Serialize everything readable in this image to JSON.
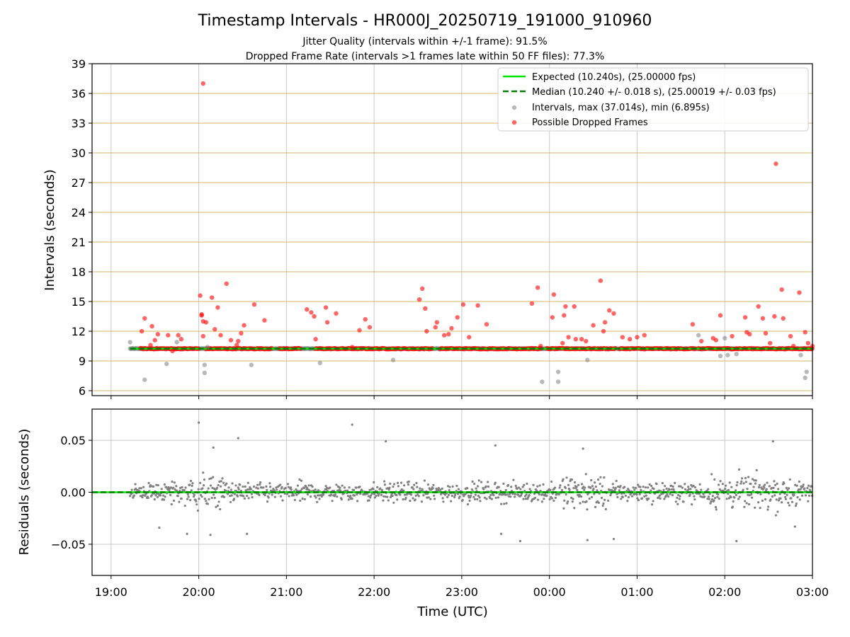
{
  "figure": {
    "title": "Timestamp Intervals - HR000J_20250719_191000_910960",
    "subtitle_1": "Jitter Quality (intervals within +/-1 frame): 91.5%",
    "subtitle_2": "Dropped Frame Rate (intervals >1 frames late within 50 FF files): 77.3%"
  },
  "colors": {
    "expected": "#00e600",
    "median": "#008000",
    "intervals": "#808080",
    "dropped": "#ff0000",
    "top_grid": "#d4b46a",
    "grid": "#c8c8c8"
  },
  "chart_data": [
    {
      "type": "scatter",
      "panel": "top",
      "xlabel": "",
      "ylabel": "Intervals (seconds)",
      "xlim": [
        "18:47",
        "03:00"
      ],
      "ylim": [
        5.5,
        39
      ],
      "yticks": [
        6,
        9,
        12,
        15,
        18,
        21,
        24,
        27,
        30,
        33,
        36,
        39
      ],
      "ytick_labels": [
        "6",
        "9",
        "12",
        "15",
        "18",
        "21",
        "24",
        "27",
        "30",
        "33",
        "36",
        "39"
      ],
      "legend_position": "top-right",
      "legend": [
        {
          "label": "Expected (10.240s), (25.00000 fps)",
          "kind": "solid-line"
        },
        {
          "label": "Median (10.240 +/- 0.018 s), (25.00019 +/- 0.03 fps)",
          "kind": "dashed-line"
        },
        {
          "label": "Intervals, max (37.014s), min (6.895s)",
          "kind": "gray-dot"
        },
        {
          "label": "Possible Dropped Frames",
          "kind": "red-dot"
        }
      ],
      "expected_interval": 10.24,
      "median_interval": 10.24,
      "dropped_frame_dense_bands": [
        [
          "19:20",
          "20:00"
        ],
        [
          "20:05",
          "20:50"
        ],
        [
          "20:55",
          "21:10"
        ],
        [
          "21:20",
          "22:40"
        ],
        [
          "22:45",
          "23:55"
        ],
        [
          "23:58",
          "00:45"
        ],
        [
          "00:48",
          "01:40"
        ],
        [
          "01:42",
          "03:00"
        ]
      ],
      "series": [
        {
          "name": "Possible Dropped Frames",
          "points": [
            [
              "19:21",
              12.0
            ],
            [
              "19:23",
              13.3
            ],
            [
              "19:27",
              10.6
            ],
            [
              "19:28",
              12.5
            ],
            [
              "19:30",
              11.1
            ],
            [
              "19:32",
              11.7
            ],
            [
              "19:39",
              11.6
            ],
            [
              "19:42",
              10.0
            ],
            [
              "19:46",
              11.6
            ],
            [
              "19:48",
              11.2
            ],
            [
              "20:01",
              15.6
            ],
            [
              "20:02",
              13.7
            ],
            [
              "20:02",
              13.6
            ],
            [
              "20:03",
              13.0
            ],
            [
              "20:03",
              11.5
            ],
            [
              "20:05",
              12.9
            ],
            [
              "20:09",
              15.4
            ],
            [
              "20:11",
              12.2
            ],
            [
              "20:13",
              14.4
            ],
            [
              "20:15",
              11.6
            ],
            [
              "20:19",
              16.8
            ],
            [
              "20:22",
              11.1
            ],
            [
              "20:26",
              10.6
            ],
            [
              "20:27",
              11.0
            ],
            [
              "20:29",
              11.8
            ],
            [
              "20:31",
              12.6
            ],
            [
              "20:38",
              14.7
            ],
            [
              "20:45",
              13.1
            ],
            [
              "21:14",
              14.2
            ],
            [
              "21:17",
              13.9
            ],
            [
              "21:19",
              13.5
            ],
            [
              "21:20",
              11.2
            ],
            [
              "21:27",
              14.4
            ],
            [
              "21:28",
              12.9
            ],
            [
              "21:34",
              13.8
            ],
            [
              "21:45",
              10.4
            ],
            [
              "21:50",
              12.1
            ],
            [
              "21:54",
              13.2
            ],
            [
              "21:57",
              12.4
            ],
            [
              "22:31",
              15.2
            ],
            [
              "22:33",
              16.3
            ],
            [
              "22:35",
              14.3
            ],
            [
              "22:36",
              12.0
            ],
            [
              "22:42",
              12.4
            ],
            [
              "22:43",
              12.9
            ],
            [
              "22:48",
              11.6
            ],
            [
              "22:51",
              11.7
            ],
            [
              "22:53",
              12.3
            ],
            [
              "22:57",
              13.4
            ],
            [
              "23:01",
              14.7
            ],
            [
              "23:05",
              11.4
            ],
            [
              "23:11",
              14.6
            ],
            [
              "23:17",
              12.7
            ],
            [
              "23:48",
              14.8
            ],
            [
              "23:52",
              16.4
            ],
            [
              "23:54",
              10.5
            ],
            [
              "00:02",
              13.4
            ],
            [
              "00:03",
              15.7
            ],
            [
              "00:09",
              10.8
            ],
            [
              "00:10",
              13.6
            ],
            [
              "00:11",
              14.5
            ],
            [
              "00:13",
              11.4
            ],
            [
              "00:17",
              14.5
            ],
            [
              "00:18",
              11.2
            ],
            [
              "00:22",
              11.2
            ],
            [
              "00:25",
              11.0
            ],
            [
              "00:30",
              12.6
            ],
            [
              "00:35",
              17.1
            ],
            [
              "00:37",
              12.0
            ],
            [
              "00:38",
              12.9
            ],
            [
              "00:41",
              14.1
            ],
            [
              "00:44",
              13.8
            ],
            [
              "00:50",
              11.4
            ],
            [
              "00:55",
              11.2
            ],
            [
              "01:00",
              11.4
            ],
            [
              "01:05",
              11.6
            ],
            [
              "01:38",
              12.7
            ],
            [
              "01:44",
              11.0
            ],
            [
              "01:52",
              11.3
            ],
            [
              "01:54",
              11.1
            ],
            [
              "01:57",
              13.6
            ],
            [
              "02:05",
              11.5
            ],
            [
              "02:14",
              13.4
            ],
            [
              "02:15",
              11.9
            ],
            [
              "02:17",
              11.7
            ],
            [
              "02:23",
              14.5
            ],
            [
              "02:26",
              13.3
            ],
            [
              "02:28",
              11.8
            ],
            [
              "02:31",
              10.8
            ],
            [
              "02:34",
              13.5
            ],
            [
              "02:35",
              28.9
            ],
            [
              "02:39",
              16.2
            ],
            [
              "02:40",
              13.3
            ],
            [
              "02:45",
              11.5
            ],
            [
              "02:47",
              10.5
            ],
            [
              "02:51",
              15.9
            ],
            [
              "02:55",
              11.9
            ],
            [
              "02:57",
              10.8
            ],
            [
              "03:00",
              10.5
            ]
          ]
        },
        {
          "name": "Intervals, max (37.014s), min (6.895s)",
          "points": [
            [
              "19:13",
              10.9
            ],
            [
              "19:23",
              7.1
            ],
            [
              "19:38",
              8.7
            ],
            [
              "19:45",
              10.9
            ],
            [
              "20:04",
              8.6
            ],
            [
              "20:04",
              7.8
            ],
            [
              "20:06",
              10.4
            ],
            [
              "20:36",
              8.6
            ],
            [
              "21:23",
              8.8
            ],
            [
              "22:13",
              9.1
            ],
            [
              "23:55",
              6.9
            ],
            [
              "00:06",
              7.9
            ],
            [
              "00:06",
              6.9
            ],
            [
              "00:26",
              9.1
            ],
            [
              "01:42",
              11.6
            ],
            [
              "01:57",
              9.5
            ],
            [
              "02:00",
              11.3
            ],
            [
              "02:02",
              9.6
            ],
            [
              "02:08",
              9.7
            ],
            [
              "02:52",
              9.6
            ],
            [
              "02:55",
              7.3
            ],
            [
              "02:56",
              7.9
            ]
          ]
        },
        {
          "name": "Possible Dropped Frames",
          "points": [
            [
              "20:03",
              37.0
            ]
          ]
        }
      ]
    },
    {
      "type": "scatter",
      "panel": "bottom",
      "xlabel": "Time (UTC)",
      "ylabel": "Residuals (seconds)",
      "xlim": [
        "18:47",
        "03:00"
      ],
      "ylim": [
        -0.08,
        0.08
      ],
      "yticks": [
        -0.05,
        0,
        0.05
      ],
      "ytick_labels": [
        "−0.05",
        "0.00",
        "0.05"
      ],
      "xticks": [
        "19:00",
        "20:00",
        "21:00",
        "22:00",
        "23:00",
        "00:00",
        "01:00",
        "02:00",
        "03:00"
      ],
      "residual_range": [
        -0.047,
        0.067
      ],
      "outliers": [
        [
          "20:00",
          0.067
        ],
        [
          "20:10",
          0.043
        ],
        [
          "20:27",
          0.052
        ],
        [
          "21:45",
          0.065
        ],
        [
          "22:08",
          0.049
        ],
        [
          "23:23",
          0.045
        ],
        [
          "00:23",
          0.042
        ],
        [
          "02:33",
          0.049
        ],
        [
          "19:33",
          -0.034
        ],
        [
          "19:52",
          -0.04
        ],
        [
          "20:08",
          -0.041
        ],
        [
          "20:33",
          -0.04
        ],
        [
          "23:27",
          -0.04
        ],
        [
          "23:40",
          -0.047
        ],
        [
          "00:26",
          -0.046
        ],
        [
          "00:44",
          -0.045
        ],
        [
          "02:08",
          -0.047
        ],
        [
          "02:48",
          -0.033
        ]
      ]
    }
  ]
}
